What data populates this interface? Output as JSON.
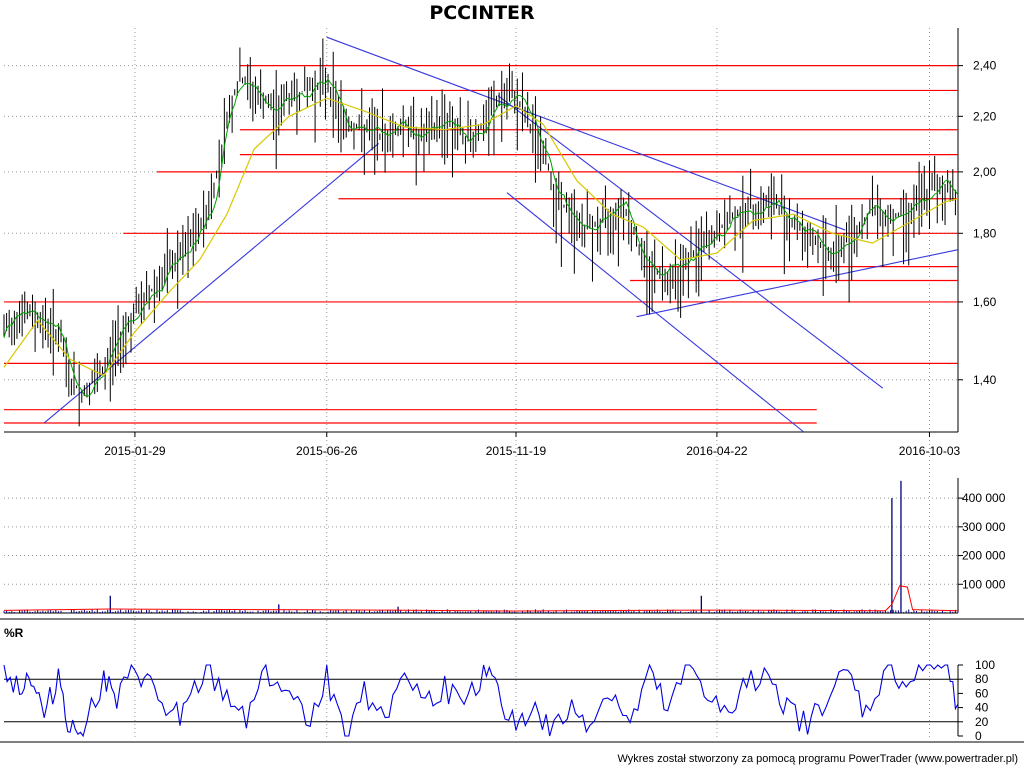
{
  "header": {
    "title": "PCCINTER"
  },
  "footer": {
    "credit": "Wykres został stworzony za pomocą programu PowerTrader (www.powertrader.pl)"
  },
  "colors": {
    "price_line": "#000000",
    "price_ma_short": "#00a000",
    "price_ma_long": "#d8c800",
    "support_resistance": "#ff0000",
    "trendline": "#3838e0",
    "volume_bars": "#000080",
    "volume_ma": "#ff0000",
    "williams_r": "#0000e0",
    "grid": "#999999",
    "axis": "#000000"
  },
  "chart_data": [
    {
      "type": "line",
      "name": "price",
      "title": "PCCINTER",
      "x_tick_labels": [
        "2015-01-29",
        "2015-06-26",
        "2015-11-19",
        "2016-04-22",
        "2016-10-03"
      ],
      "y_tick_labels": [
        "2,40",
        "2,20",
        "2,00",
        "1,80",
        "1,60",
        "1,40"
      ],
      "y_ticks": [
        2.4,
        2.2,
        2.0,
        1.8,
        1.6,
        1.4
      ],
      "ylim": [
        1.28,
        2.56
      ],
      "y_scale": "log",
      "x_domain": [
        "2014-10-20",
        "2016-10-25"
      ],
      "grid": true,
      "series": [
        {
          "role": "price-close",
          "x": [
            "2014-10-20",
            "2014-11-01",
            "2014-11-15",
            "2014-12-01",
            "2014-12-10",
            "2014-12-20",
            "2015-01-05",
            "2015-01-15",
            "2015-01-29",
            "2015-02-10",
            "2015-02-25",
            "2015-03-10",
            "2015-03-20",
            "2015-03-31",
            "2015-04-10",
            "2015-04-20",
            "2015-05-01",
            "2015-05-15",
            "2015-05-28",
            "2015-06-10",
            "2015-06-26",
            "2015-07-10",
            "2015-07-25",
            "2015-08-10",
            "2015-08-25",
            "2015-09-10",
            "2015-09-25",
            "2015-10-10",
            "2015-10-25",
            "2015-11-05",
            "2015-11-19",
            "2015-12-01",
            "2015-12-10",
            "2015-12-20",
            "2016-01-05",
            "2016-01-20",
            "2016-02-01",
            "2016-02-10",
            "2016-02-25",
            "2016-03-10",
            "2016-03-25",
            "2016-04-05",
            "2016-04-22",
            "2016-05-05",
            "2016-05-20",
            "2016-06-05",
            "2016-06-20",
            "2016-07-05",
            "2016-07-20",
            "2016-08-05",
            "2016-08-20",
            "2016-09-05",
            "2016-09-20",
            "2016-10-03",
            "2016-10-15",
            "2016-10-25"
          ],
          "values": [
            1.52,
            1.58,
            1.56,
            1.52,
            1.4,
            1.37,
            1.42,
            1.5,
            1.57,
            1.63,
            1.7,
            1.75,
            1.82,
            1.94,
            2.2,
            2.35,
            2.3,
            2.22,
            2.28,
            2.3,
            2.35,
            2.18,
            2.15,
            2.13,
            2.18,
            2.12,
            2.2,
            2.12,
            2.16,
            2.26,
            2.28,
            2.16,
            2.08,
            1.92,
            1.83,
            1.82,
            1.86,
            1.9,
            1.72,
            1.68,
            1.7,
            1.74,
            1.8,
            1.86,
            1.88,
            1.9,
            1.84,
            1.78,
            1.74,
            1.8,
            1.88,
            1.85,
            1.88,
            1.94,
            1.95,
            1.93
          ]
        },
        {
          "role": "moving-average-long",
          "x": [
            "2014-10-20",
            "2014-11-15",
            "2014-12-10",
            "2015-01-05",
            "2015-01-29",
            "2015-02-25",
            "2015-03-20",
            "2015-04-10",
            "2015-05-01",
            "2015-05-28",
            "2015-06-26",
            "2015-07-25",
            "2015-08-25",
            "2015-09-25",
            "2015-10-25",
            "2015-11-19",
            "2015-12-10",
            "2016-01-05",
            "2016-02-01",
            "2016-02-25",
            "2016-03-25",
            "2016-04-22",
            "2016-05-20",
            "2016-06-20",
            "2016-07-20",
            "2016-08-20",
            "2016-09-20",
            "2016-10-15",
            "2016-10-25"
          ],
          "values": [
            1.43,
            1.55,
            1.45,
            1.41,
            1.52,
            1.63,
            1.72,
            1.86,
            2.08,
            2.2,
            2.27,
            2.22,
            2.16,
            2.15,
            2.17,
            2.24,
            2.17,
            1.97,
            1.86,
            1.82,
            1.72,
            1.74,
            1.84,
            1.86,
            1.8,
            1.77,
            1.84,
            1.9,
            1.91
          ]
        }
      ],
      "horizontal_levels": [
        2.4,
        2.3,
        2.15,
        2.06,
        2.0,
        1.91,
        1.8,
        1.7,
        1.66,
        1.6,
        1.44,
        1.33,
        1.3
      ],
      "trendlines": [
        {
          "from": [
            "2014-11-20",
            1.3
          ],
          "to": [
            "2015-08-05",
            2.1
          ]
        },
        {
          "from": [
            "2015-06-26",
            2.52
          ],
          "to": [
            "2016-07-30",
            1.81
          ]
        },
        {
          "from": [
            "2015-11-05",
            2.28
          ],
          "to": [
            "2016-08-28",
            1.38
          ]
        },
        {
          "from": [
            "2015-11-12",
            1.93
          ],
          "to": [
            "2016-06-28",
            1.28
          ]
        },
        {
          "from": [
            "2016-02-20",
            1.56
          ],
          "to": [
            "2016-10-25",
            1.75
          ]
        }
      ]
    },
    {
      "type": "bar",
      "name": "volume",
      "y_tick_labels": [
        "400 000",
        "300 000",
        "200 000",
        "100 000"
      ],
      "y_ticks": [
        400000,
        300000,
        200000,
        100000
      ],
      "ylim": [
        0,
        470000
      ],
      "typical_volume": 8000,
      "spikes": [
        {
          "date": "2015-01-10",
          "value": 60000
        },
        {
          "date": "2015-05-20",
          "value": 30000
        },
        {
          "date": "2015-08-20",
          "value": 22000
        },
        {
          "date": "2016-04-10",
          "value": 60000
        },
        {
          "date": "2016-09-04",
          "value": 400000
        },
        {
          "date": "2016-09-11",
          "value": 460000
        }
      ],
      "moving_average": {
        "x": [
          "2014-10-20",
          "2015-01-10",
          "2015-06-10",
          "2015-08-15",
          "2015-11-19",
          "2016-04-10",
          "2016-08-30",
          "2016-09-04",
          "2016-09-10",
          "2016-09-16",
          "2016-09-20",
          "2016-10-25"
        ],
        "values": [
          9000,
          14000,
          11000,
          10000,
          7000,
          10000,
          8000,
          30000,
          95000,
          90000,
          12000,
          8000
        ]
      }
    },
    {
      "type": "line",
      "name": "williams-r",
      "title": "%R",
      "y_tick_labels": [
        "100",
        "80",
        "60",
        "40",
        "20",
        "0"
      ],
      "y_ticks": [
        100,
        80,
        60,
        40,
        20,
        0
      ],
      "reference_lines": [
        80,
        20
      ],
      "ylim": [
        0,
        100
      ],
      "x": [
        "2014-10-20",
        "2014-11-01",
        "2014-11-10",
        "2014-11-20",
        "2014-12-01",
        "2014-12-10",
        "2014-12-20",
        "2015-01-05",
        "2015-01-15",
        "2015-01-29",
        "2015-02-10",
        "2015-02-25",
        "2015-03-10",
        "2015-03-25",
        "2015-04-10",
        "2015-04-25",
        "2015-05-10",
        "2015-05-25",
        "2015-06-10",
        "2015-06-26",
        "2015-07-10",
        "2015-07-25",
        "2015-08-10",
        "2015-08-25",
        "2015-09-10",
        "2015-09-25",
        "2015-10-10",
        "2015-10-25",
        "2015-11-05",
        "2015-11-19",
        "2015-12-01",
        "2015-12-15",
        "2016-01-01",
        "2016-01-15",
        "2016-02-01",
        "2016-02-15",
        "2016-03-01",
        "2016-03-15",
        "2016-04-01",
        "2016-04-15",
        "2016-05-01",
        "2016-05-15",
        "2016-06-01",
        "2016-06-15",
        "2016-07-01",
        "2016-07-15",
        "2016-08-01",
        "2016-08-15",
        "2016-09-01",
        "2016-09-15",
        "2016-10-01",
        "2016-10-15",
        "2016-10-25"
      ],
      "values": [
        95,
        70,
        85,
        25,
        90,
        5,
        15,
        80,
        45,
        95,
        70,
        25,
        40,
        90,
        55,
        30,
        95,
        65,
        20,
        85,
        5,
        60,
        35,
        90,
        45,
        70,
        30,
        95,
        60,
        15,
        40,
        5,
        35,
        20,
        65,
        10,
        90,
        30,
        100,
        60,
        20,
        75,
        95,
        40,
        10,
        55,
        85,
        30,
        100,
        70,
        100,
        100,
        45
      ]
    }
  ]
}
